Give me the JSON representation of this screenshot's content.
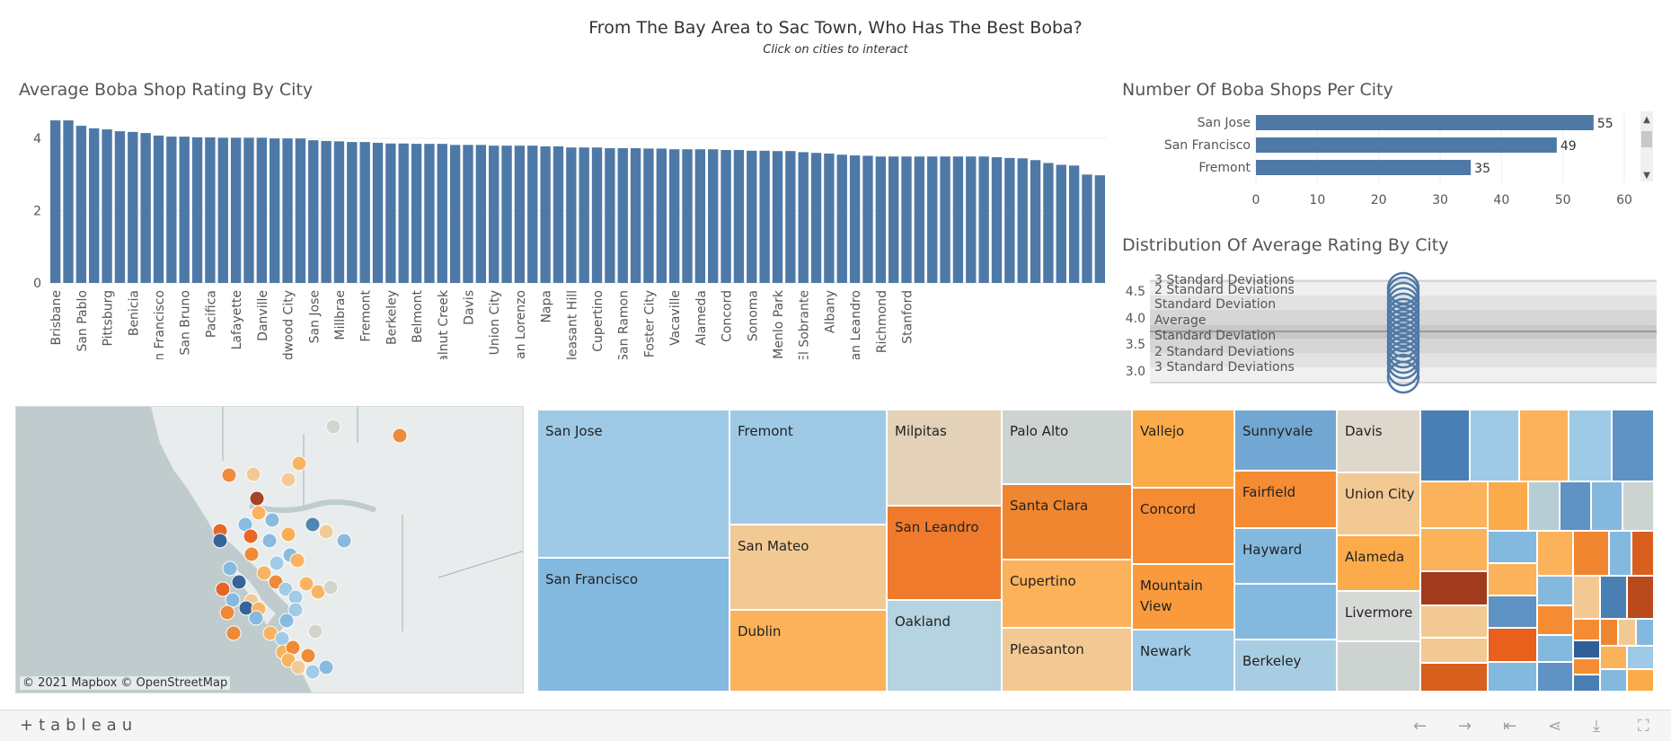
{
  "header": {
    "title": "From The Bay Area  to Sac Town, Who Has The Best Boba?",
    "subtitle": "Click on cities to interact"
  },
  "rating_chart": {
    "title": "Average Boba Shop Rating By City",
    "y_ticks": [
      "0",
      "2",
      "4"
    ],
    "ylim": [
      0,
      4.6
    ],
    "labeled_cities": [
      "Brisbane",
      "San Pablo",
      "Pittsburg",
      "Benicia",
      "San Francisco",
      "San Bruno",
      "Pacifica",
      "Lafayette",
      "Danville",
      "Redwood City",
      "San Jose",
      "Millbrae",
      "Fremont",
      "Berkeley",
      "Belmont",
      "Walnut Creek",
      "Davis",
      "Union City",
      "San Lorenzo",
      "Napa",
      "Pleasant Hill",
      "Cupertino",
      "San Ramon",
      "Foster City",
      "Vacaville",
      "Alameda",
      "Concord",
      "Sonoma",
      "Menlo Park",
      "El Sobrante",
      "Albany",
      "San Leandro",
      "Richmond",
      "Stanford"
    ],
    "values": [
      4.5,
      4.5,
      4.35,
      4.28,
      4.25,
      4.2,
      4.18,
      4.15,
      4.08,
      4.05,
      4.05,
      4.03,
      4.03,
      4.02,
      4.02,
      4.02,
      4.02,
      4.0,
      4.0,
      4.0,
      3.95,
      3.93,
      3.92,
      3.9,
      3.9,
      3.88,
      3.86,
      3.86,
      3.85,
      3.85,
      3.85,
      3.82,
      3.82,
      3.82,
      3.8,
      3.8,
      3.8,
      3.8,
      3.78,
      3.78,
      3.75,
      3.75,
      3.75,
      3.73,
      3.73,
      3.73,
      3.72,
      3.72,
      3.7,
      3.7,
      3.7,
      3.7,
      3.68,
      3.68,
      3.66,
      3.66,
      3.65,
      3.65,
      3.62,
      3.6,
      3.58,
      3.55,
      3.53,
      3.52,
      3.5,
      3.5,
      3.5,
      3.5,
      3.5,
      3.5,
      3.5,
      3.5,
      3.5,
      3.48,
      3.46,
      3.45,
      3.4,
      3.32,
      3.27,
      3.25,
      3.0,
      2.98
    ]
  },
  "shops_chart": {
    "title": "Number Of Boba Shops Per City",
    "x_ticks": [
      "0",
      "10",
      "20",
      "30",
      "40",
      "50",
      "60"
    ],
    "xlim": [
      0,
      60
    ],
    "rows": [
      {
        "city": "San Jose",
        "value": 55,
        "value_label": "55"
      },
      {
        "city": "San Francisco",
        "value": 49,
        "value_label": "49"
      },
      {
        "city": "Fremont",
        "value": 35,
        "value_label": "35"
      }
    ]
  },
  "distribution_chart": {
    "title": "Distribution Of Average Rating By City",
    "y_ticks": [
      "4.5",
      "4.0",
      "3.5",
      "3.0"
    ],
    "band_labels": {
      "plus3": "3 Standard Deviations",
      "plus2": "2 Standard Deviations",
      "plus1": "Standard Deviation",
      "avg": "Average",
      "minus1": "Standard Deviation",
      "minus2": "2 Standard Deviations",
      "minus3": "3 Standard Deviations"
    }
  },
  "map": {
    "credit": "© 2021 Mapbox  © OpenStreetMap"
  },
  "treemap": {
    "labels": {
      "san_jose": "San Jose",
      "san_francisco": "San Francisco",
      "fremont": "Fremont",
      "san_mateo": "San Mateo",
      "dublin": "Dublin",
      "milpitas": "Milpitas",
      "san_leandro": "San Leandro",
      "oakland": "Oakland",
      "palo_alto": "Palo Alto",
      "santa_clara": "Santa Clara",
      "cupertino": "Cupertino",
      "pleasanton": "Pleasanton",
      "vallejo": "Vallejo",
      "concord": "Concord",
      "mountain_view": "Mountain View",
      "newark": "Newark",
      "sunnyvale": "Sunnyvale",
      "fairfield": "Fairfield",
      "hayward": "Hayward",
      "berkeley": "Berkeley",
      "davis": "Davis",
      "union_city": "Union City",
      "alameda": "Alameda",
      "livermore": "Livermore"
    }
  },
  "footer": {
    "logo": "+tableau"
  }
}
